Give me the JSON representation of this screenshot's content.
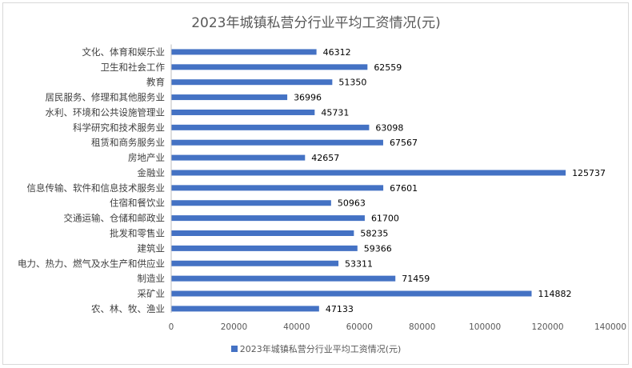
{
  "chart_data": {
    "type": "bar",
    "orientation": "horizontal",
    "title": "2023年城镇私营分行业平均工资情况(元)",
    "categories": [
      "文化、体育和娱乐业",
      "卫生和社会工作",
      "教育",
      "居民服务、修理和其他服务业",
      "水利、环境和公共设施管理业",
      "科学研究和技术服务业",
      "租赁和商务服务业",
      "房地产业",
      "金融业",
      "信息传输、软件和信息技术服务业",
      "住宿和餐饮业",
      "交通运输、仓储和邮政业",
      "批发和零售业",
      "建筑业",
      "电力、热力、燃气及水生产和供应业",
      "制造业",
      "采矿业",
      "农、林、牧、渔业"
    ],
    "series": [
      {
        "name": "2023年城镇私营分行业平均工资情况(元)",
        "values": [
          46312,
          62559,
          51350,
          36996,
          45731,
          63098,
          67567,
          42657,
          125737,
          67601,
          50963,
          61700,
          58235,
          59366,
          53311,
          71459,
          114882,
          47133
        ],
        "value_labels": [
          "46312",
          "62559",
          "51350",
          "36996",
          "45731",
          "63098",
          "67567",
          "42657",
          "125737",
          "67601",
          "50963",
          "61700",
          "58235",
          "59366",
          "53311",
          "71459",
          "114882",
          "47133"
        ]
      }
    ],
    "xlim": [
      0,
      140000
    ],
    "x_ticks": [
      "0",
      "20000",
      "40000",
      "60000",
      "80000",
      "100000",
      "120000",
      "140000"
    ],
    "grid": false,
    "legend_position": "bottom",
    "colors": {
      "bar": "#4472c4",
      "text": "#595959",
      "border": "#d9d9d9"
    }
  }
}
